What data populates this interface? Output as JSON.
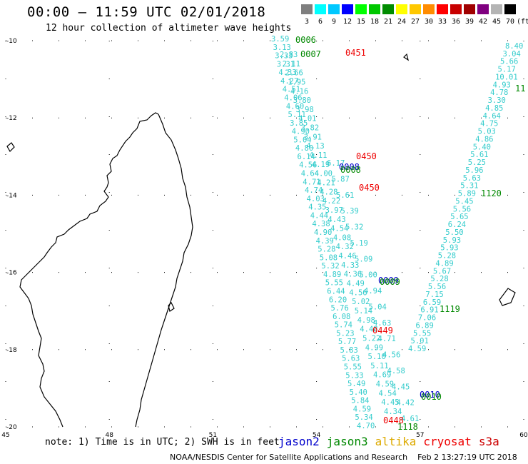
{
  "header": {
    "title": "00:00 – 11:59 UTC 02/01/2018",
    "subtitle": "12 hour collection of altimeter wave heights"
  },
  "color_scale": {
    "unit": "(ft)",
    "bins": [
      {
        "label": "3",
        "color": "#7f7f7f"
      },
      {
        "label": "6",
        "color": "#00ffff"
      },
      {
        "label": "9",
        "color": "#00c8ff"
      },
      {
        "label": "12",
        "color": "#0000ff"
      },
      {
        "label": "15",
        "color": "#00ff00"
      },
      {
        "label": "18",
        "color": "#00c800"
      },
      {
        "label": "21",
        "color": "#008c00"
      },
      {
        "label": "24",
        "color": "#ffff00"
      },
      {
        "label": "27",
        "color": "#ffc800"
      },
      {
        "label": "30",
        "color": "#ff8c00"
      },
      {
        "label": "33",
        "color": "#ff0000"
      },
      {
        "label": "36",
        "color": "#c80000"
      },
      {
        "label": "39",
        "color": "#a00000"
      },
      {
        "label": "42",
        "color": "#800080"
      },
      {
        "label": "45",
        "color": "#b4b4b4"
      },
      {
        "label": "70",
        "color": "#000000"
      }
    ]
  },
  "map_axes": {
    "lon_ticks": [
      "45",
      "48",
      "51",
      "54",
      "57",
      "60"
    ],
    "lat_ticks": [
      "-10",
      "-12",
      "-14",
      "-16",
      "-18",
      "-20"
    ]
  },
  "tracks": {
    "cyan_color": "#33cccc",
    "left_track_values": [
      "3.59",
      "3.13",
      "3.33",
      "3.31",
      "4.33",
      "4.27",
      "4.51",
      "4.06",
      "4.60",
      "5.11",
      "3.85",
      "4.90",
      "5.04",
      "4.80",
      "6.14",
      "4.56",
      "4.64",
      "4.71",
      "4.74",
      "4.03",
      "4.35",
      "4.44",
      "4.38",
      "4.90",
      "4.39",
      "5.28",
      "5.08",
      "5.32",
      "4.89",
      "5.55",
      "6.44",
      "6.20",
      "5.76",
      "6.08",
      "5.74",
      "5.23",
      "5.77",
      "5.83",
      "5.63",
      "5.55",
      "5.33",
      "5.49",
      "5.40",
      "5.84",
      "4.59",
      "5.34",
      "4.70"
    ],
    "left_track_values_2": [
      "2.83",
      "2.11",
      "2.66",
      "1.95",
      "4.16",
      "3.80",
      "3.98",
      "4.01",
      "3.82",
      "3.91",
      "4.13",
      "4.11",
      "4.19",
      "4.00",
      "4.21",
      "4.28",
      "4.22",
      "3.97",
      "4.43",
      "4.54",
      "4.08",
      "4.32",
      "4.46",
      "4.33",
      "4.36",
      "4.49",
      "4.56",
      "5.02",
      "5.14",
      "4.98",
      "4.48",
      "5.22",
      "4.99",
      "5.10",
      "5.11",
      "4.69",
      "4.59",
      "4.54",
      "4.45",
      "4.34"
    ],
    "mid_track_values": [
      "6.17",
      "5.87",
      "5.61",
      "5.39",
      "5.32",
      "5.19",
      "5.09",
      "5.00",
      "4.94",
      "5.04",
      "4.63",
      "4.71",
      "4.56",
      "4.58",
      "4.45",
      "4.42",
      "4.61"
    ],
    "right_track_values": [
      "8.40",
      "3.04",
      "5.66",
      "5.17",
      "10.01",
      "4.93",
      "4.78",
      "3.30",
      "4.85",
      "4.64",
      "4.75",
      "5.03",
      "4.86",
      "5.40",
      "5.61",
      "5.25",
      "5.96",
      "5.63",
      "5.31",
      "5.89",
      "5.45",
      "5.56",
      "5.65",
      "6.24",
      "5.50",
      "5.93",
      "5.93",
      "5.28",
      "4.89",
      "5.67",
      "5.28",
      "5.56",
      "7.15",
      "6.59",
      "6.91",
      "7.06",
      "6.89",
      "5.55",
      "5.01",
      "4.59"
    ]
  },
  "time_labels": [
    {
      "text": "0006",
      "color": "#008800"
    },
    {
      "text": "0007",
      "color": "#008800"
    },
    {
      "text": "0451",
      "color": "#ee0000"
    },
    {
      "text": "0450",
      "color": "#ee0000"
    },
    {
      "text": "0008",
      "color": "#0000cc"
    },
    {
      "text": "0008",
      "color": "#008800"
    },
    {
      "text": "0450",
      "color": "#ee0000"
    },
    {
      "text": "1120",
      "color": "#008800"
    },
    {
      "text": "0009",
      "color": "#0000cc"
    },
    {
      "text": "0009",
      "color": "#008800"
    },
    {
      "text": "1119",
      "color": "#008800"
    },
    {
      "text": "0449",
      "color": "#ee0000"
    },
    {
      "text": "0010",
      "color": "#0000cc"
    },
    {
      "text": "0010",
      "color": "#008800"
    },
    {
      "text": "0448",
      "color": "#ee0000"
    },
    {
      "text": "1118",
      "color": "#008800"
    },
    {
      "text": "11",
      "color": "#008800"
    }
  ],
  "note": {
    "text": "note: 1) Time is in UTC; 2) SWH is in feet"
  },
  "satellites": [
    {
      "name": "jason2",
      "color": "#0000cc"
    },
    {
      "name": "jason3",
      "color": "#008800"
    },
    {
      "name": "altika",
      "color": "#ddaa00"
    },
    {
      "name": "cryosat",
      "color": "#ee0000"
    },
    {
      "name": "s3a",
      "color": "#cc0000"
    }
  ],
  "footer": {
    "credit": "NOAA/NESDIS Center for Satellite Applications and Research",
    "timestamp": "Feb  2 13:27:19 UTC 2018"
  }
}
